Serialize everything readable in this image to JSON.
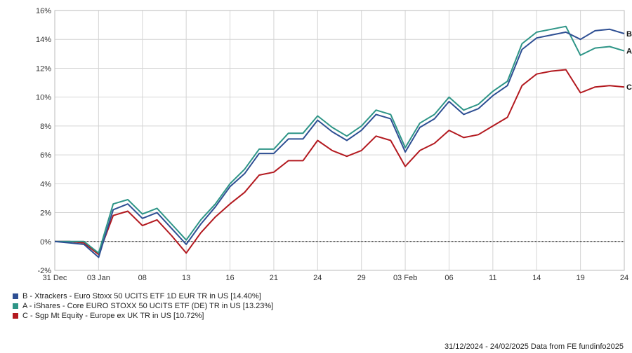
{
  "chart_data": {
    "type": "line",
    "ylim": [
      -2,
      16
    ],
    "y_ticks": [
      "-2%",
      "0%",
      "2%",
      "4%",
      "6%",
      "8%",
      "10%",
      "12%",
      "14%",
      "16%"
    ],
    "y_tick_values": [
      -2,
      0,
      2,
      4,
      6,
      8,
      10,
      12,
      14,
      16
    ],
    "x_ticks": [
      "31 Dec",
      "03 Jan",
      "08",
      "13",
      "16",
      "21",
      "24",
      "29",
      "03 Feb",
      "06",
      "11",
      "14",
      "19",
      "24"
    ],
    "x_tick_index": [
      0,
      3,
      6,
      9,
      12,
      15,
      18,
      21,
      24,
      27,
      30,
      33,
      36,
      39
    ],
    "zero_line": true,
    "series": [
      {
        "name": "B - Xtrackers - Euro Stoxx 50 UCITS ETF 1D EUR TR in US [14.40%]",
        "end_label": "B",
        "color": "#2e4f93",
        "values": [
          0,
          -0.1,
          -0.2,
          -1.1,
          2.2,
          2.6,
          1.6,
          2.0,
          0.9,
          -0.2,
          1.2,
          2.4,
          3.8,
          4.7,
          6.1,
          6.1,
          7.1,
          7.1,
          8.4,
          7.6,
          7.0,
          7.7,
          8.8,
          8.5,
          6.2,
          7.9,
          8.5,
          9.7,
          8.8,
          9.2,
          10.1,
          10.8,
          13.3,
          14.1,
          14.3,
          14.5,
          14.0,
          14.6,
          14.7,
          14.4
        ]
      },
      {
        "name": "A - iShares - Core EURO STOXX 50 UCITS ETF (DE) TR in US [13.23%]",
        "end_label": "A",
        "color": "#2e9587",
        "values": [
          0,
          0,
          0,
          -0.8,
          2.6,
          2.9,
          1.9,
          2.3,
          1.2,
          0.1,
          1.5,
          2.6,
          4.0,
          5.0,
          6.4,
          6.4,
          7.5,
          7.5,
          8.7,
          7.9,
          7.3,
          8.0,
          9.1,
          8.8,
          6.5,
          8.2,
          8.8,
          10.0,
          9.1,
          9.5,
          10.4,
          11.1,
          13.7,
          14.5,
          14.7,
          14.9,
          12.9,
          13.4,
          13.5,
          13.2
        ]
      },
      {
        "name": "C - Sgp Mt Equity - Europe ex UK TR in US [10.72%]",
        "end_label": "C",
        "color": "#b3191f",
        "values": [
          0,
          0,
          -0.1,
          -0.9,
          1.8,
          2.1,
          1.1,
          1.5,
          0.4,
          -0.8,
          0.6,
          1.7,
          2.6,
          3.4,
          4.6,
          4.8,
          5.6,
          5.6,
          7.0,
          6.3,
          5.9,
          6.3,
          7.3,
          7.0,
          5.2,
          6.3,
          6.8,
          7.7,
          7.2,
          7.4,
          8.0,
          8.6,
          10.8,
          11.6,
          11.8,
          11.9,
          10.3,
          10.7,
          10.8,
          10.7
        ]
      }
    ]
  },
  "legend": {
    "items": [
      {
        "label": "B - Xtrackers - Euro Stoxx 50 UCITS ETF 1D EUR TR in US [14.40%]",
        "color": "#2e4f93"
      },
      {
        "label": "A - iShares - Core EURO STOXX 50 UCITS ETF (DE) TR in US [13.23%]",
        "color": "#2e9587"
      },
      {
        "label": "C - Sgp Mt Equity - Europe ex UK TR in US [10.72%]",
        "color": "#b3191f"
      }
    ]
  },
  "footer": {
    "text": "31/12/2024 - 24/02/2025 Data from FE fundinfo2025"
  }
}
